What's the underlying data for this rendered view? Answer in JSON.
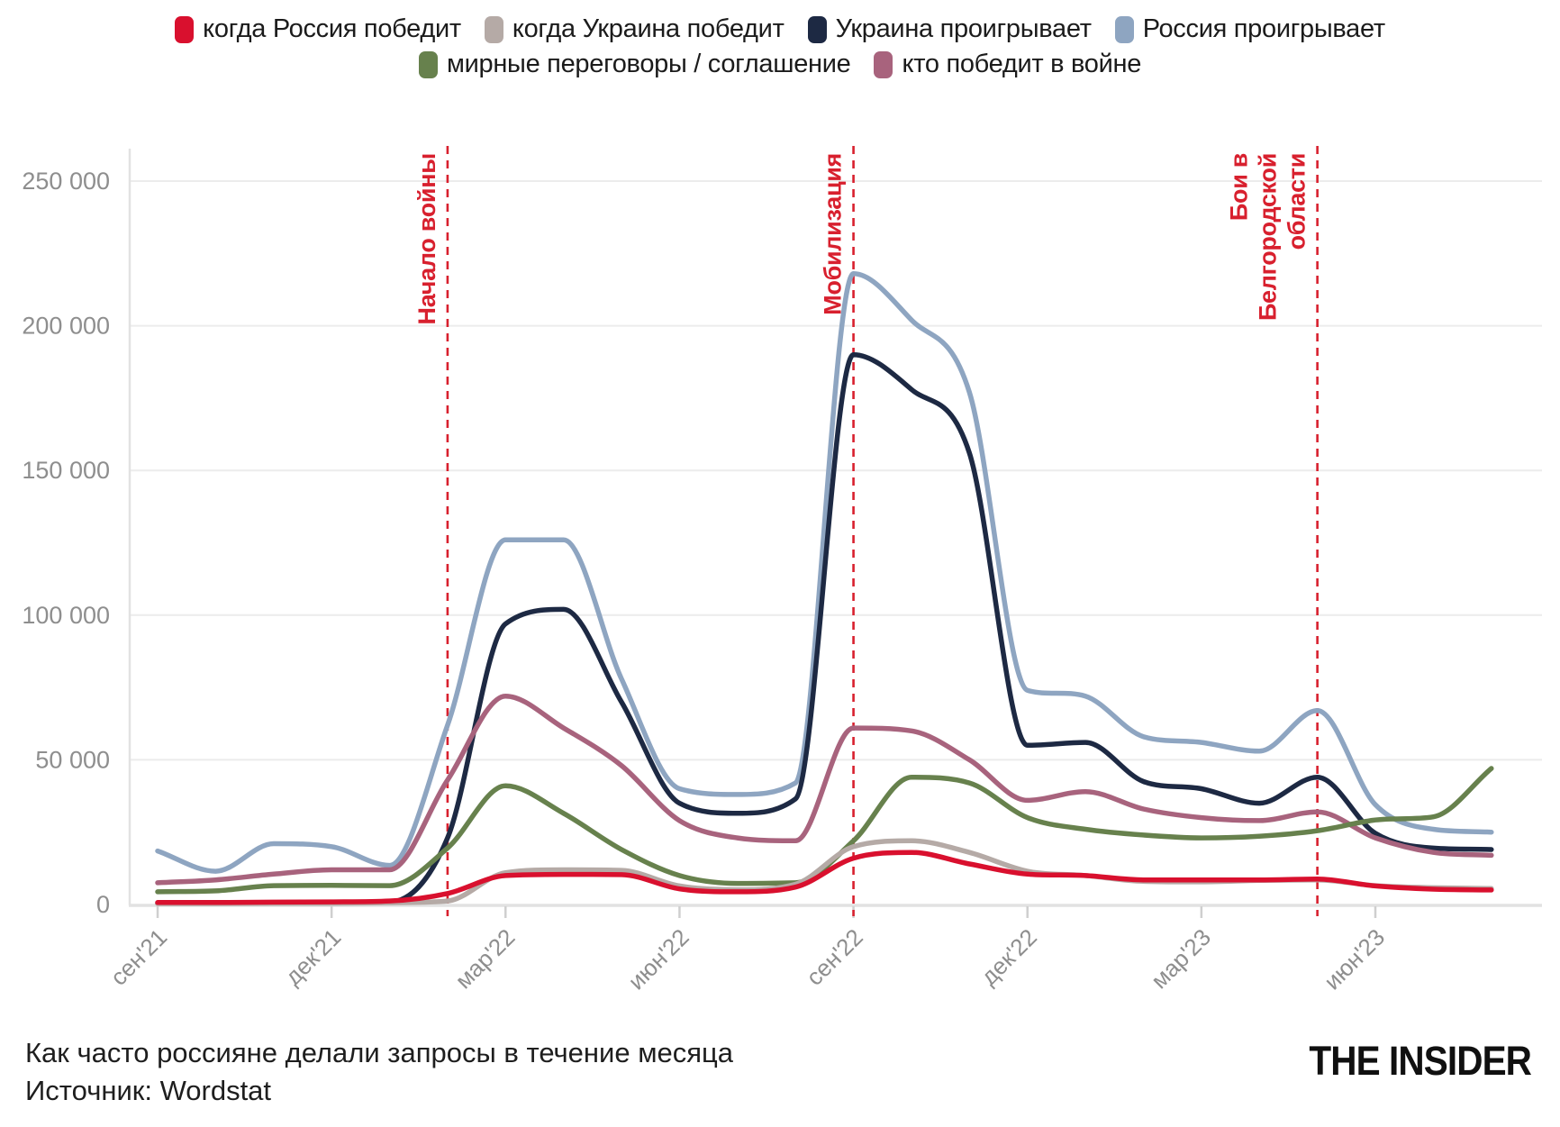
{
  "legend": {
    "rows": [
      [
        {
          "label": "когда Россия победит",
          "color": "#d9102e"
        },
        {
          "label": "когда Украина победит",
          "color": "#b5aaa6"
        },
        {
          "label": "Украина проигрывает",
          "color": "#1d2943"
        },
        {
          "label": "Россия проигрывает",
          "color": "#8ea5c1"
        }
      ],
      [
        {
          "label": "мирные переговоры / соглашение",
          "color": "#67814d"
        },
        {
          "label": "кто победит в войне",
          "color": "#a8637d"
        }
      ]
    ]
  },
  "chart_data": {
    "type": "line",
    "title": "Как часто россияне делали запросы в течение месяца",
    "source": "Источник: Wordstat",
    "x": [
      "сен'21",
      "окт'21",
      "ноя'21",
      "дек'21",
      "янв'22",
      "фев'22",
      "мар'22",
      "апр'22",
      "май'22",
      "июн'22",
      "июл'22",
      "авг'22",
      "сен'22",
      "окт'22",
      "ноя'22",
      "дек'22",
      "янв'23",
      "фев'23",
      "мар'23",
      "апр'23",
      "май'23",
      "июн'23",
      "июл'23",
      "авг'23"
    ],
    "x_tick_indices": [
      0,
      3,
      6,
      9,
      12,
      15,
      18,
      21
    ],
    "x_tick_labels": [
      "сен'21",
      "дек'21",
      "мар'22",
      "июн'22",
      "сен'22",
      "дек'22",
      "мар'23",
      "июн'23"
    ],
    "ylim": [
      0,
      262000
    ],
    "grid": "horizontal",
    "legend_position": "top",
    "yticks": [
      {
        "value": 0,
        "label": "0"
      },
      {
        "value": 50000,
        "label": "50 000"
      },
      {
        "value": 100000,
        "label": "100 000"
      },
      {
        "value": 150000,
        "label": "150 000"
      },
      {
        "value": 200000,
        "label": "200 000"
      },
      {
        "value": 250000,
        "label": "250 000"
      }
    ],
    "series": [
      {
        "id": "kogda-rossiya-pobedit",
        "name": "когда Россия победит",
        "color": "#d9102e",
        "values": [
          700,
          700,
          800,
          900,
          1200,
          3800,
          10000,
          10400,
          10300,
          5400,
          4400,
          6000,
          16000,
          18000,
          14000,
          10500,
          10000,
          8500,
          8500,
          8500,
          8800,
          6400,
          5300,
          5000
        ]
      },
      {
        "id": "kogda-ukraina-pobedit",
        "name": "когда Украина победит",
        "color": "#b5aaa6",
        "values": [
          300,
          300,
          400,
          400,
          600,
          1200,
          11000,
          12000,
          11800,
          6400,
          5100,
          7000,
          20000,
          22000,
          18000,
          11500,
          10000,
          8000,
          7800,
          8300,
          8500,
          6500,
          5800,
          5500
        ]
      },
      {
        "id": "ukraina-proigryvaet",
        "name": "Украина проигрывает",
        "color": "#1d2943",
        "values": [
          400,
          400,
          500,
          600,
          800,
          23000,
          97000,
          102000,
          70000,
          35000,
          31500,
          36500,
          190000,
          178000,
          156000,
          55000,
          56000,
          42500,
          40000,
          35000,
          44000,
          24600,
          19500,
          19000
        ]
      },
      {
        "id": "rossiya-proigryvaet",
        "name": "Россия проигрывает",
        "color": "#8ea5c1",
        "values": [
          18500,
          11500,
          21000,
          20000,
          13500,
          62000,
          126000,
          126000,
          78000,
          40000,
          38000,
          42000,
          218000,
          202000,
          177000,
          74000,
          72000,
          58000,
          56000,
          53000,
          67000,
          34500,
          26000,
          25000
        ]
      },
      {
        "id": "mirnye-peregovory",
        "name": "мирные переговоры / соглашение",
        "color": "#67814d",
        "values": [
          4400,
          4700,
          6500,
          6600,
          6500,
          19500,
          41000,
          31500,
          19000,
          10000,
          7300,
          7500,
          22000,
          44000,
          42000,
          30000,
          26000,
          24000,
          23000,
          23600,
          25500,
          29200,
          30300,
          47000
        ]
      },
      {
        "id": "kto-pobedit-v-voyne",
        "name": "кто победит в войне",
        "color": "#a8637d",
        "values": [
          7500,
          8500,
          10500,
          12000,
          12000,
          43000,
          72000,
          61000,
          48000,
          29000,
          23000,
          22000,
          61000,
          60000,
          50000,
          36000,
          39000,
          33000,
          30000,
          29000,
          32000,
          23000,
          18000,
          17000
        ]
      }
    ],
    "annotations": [
      {
        "label": "Начало войны",
        "lines": [
          "Начало войны"
        ],
        "month": "фев'22",
        "month_index": 5,
        "color": "#d8202e"
      },
      {
        "label": "Мобилизация",
        "lines": [
          "Мобилизация"
        ],
        "month": "сен'22",
        "month_index": 12,
        "color": "#d8202e"
      },
      {
        "label": "Бои в Белгородской области",
        "lines": [
          "Бои в",
          "Белгородской",
          "области"
        ],
        "month": "май'23",
        "month_index": 20,
        "color": "#d8202e"
      }
    ]
  },
  "footer": {
    "caption": "Как часто россияне делали запросы в течение месяца",
    "source": "Источник: Wordstat"
  },
  "brand": {
    "logo": "THE INSIDER"
  }
}
